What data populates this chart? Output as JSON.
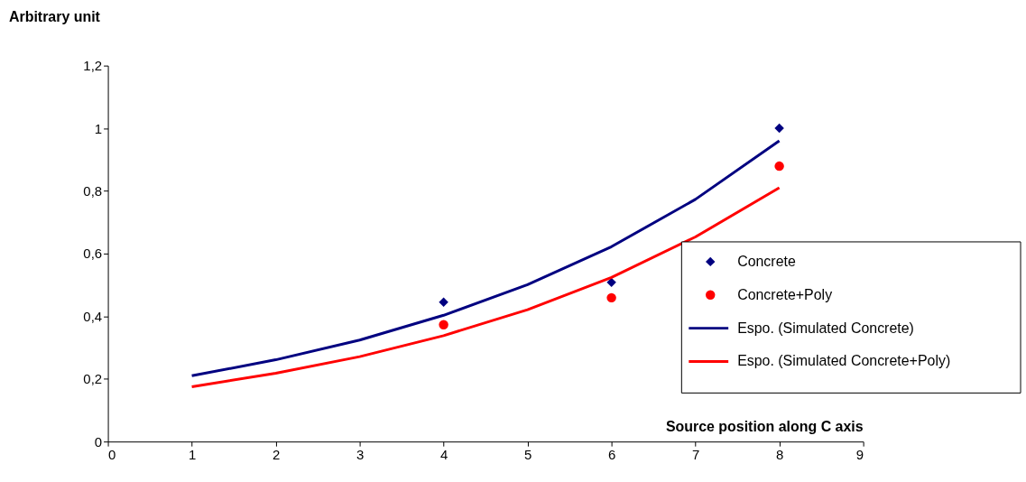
{
  "chart_data": {
    "type": "scatter",
    "xlabel": "Source position along C axis",
    "ylabel": "Arbitrary unit",
    "xlim": [
      0,
      9
    ],
    "xticks": [
      0,
      1,
      2,
      3,
      4,
      5,
      6,
      7,
      8,
      9
    ],
    "ylim": [
      0,
      1.2
    ],
    "yticks": [
      0,
      {
        "value": 0.2,
        "label": "0,2"
      },
      {
        "value": 0.4,
        "label": "0,4"
      },
      {
        "value": 0.6,
        "label": "0,6"
      },
      {
        "value": 0.8,
        "label": "0,8"
      },
      1,
      {
        "value": 1.2,
        "label": "1,2"
      }
    ],
    "grid": false,
    "legend": "right",
    "series": [
      {
        "name": "Concrete",
        "marker": "diamond",
        "color": "#000080",
        "x": [
          4,
          6,
          8
        ],
        "values": [
          0.445,
          0.508,
          1.0
        ]
      },
      {
        "name": "Concrete+Poly",
        "marker": "circle",
        "color": "#ff0000",
        "x": [
          4,
          6,
          8
        ],
        "values": [
          0.373,
          0.459,
          0.879
        ]
      },
      {
        "name": "Espo. (Simulated Concrete)",
        "type": "line",
        "marker": "none",
        "color": "#000080",
        "x": [
          1,
          2,
          3,
          4,
          5,
          6,
          7,
          8
        ],
        "values": [
          0.21,
          0.261,
          0.324,
          0.403,
          0.501,
          0.622,
          0.773,
          0.96
        ]
      },
      {
        "name": "Espo. (Simulated Concrete+Poly)",
        "type": "line",
        "marker": "none",
        "color": "#ff0000",
        "x": [
          1,
          2,
          3,
          4,
          5,
          6,
          7,
          8
        ],
        "values": [
          0.175,
          0.218,
          0.271,
          0.338,
          0.421,
          0.524,
          0.653,
          0.81
        ]
      }
    ]
  }
}
